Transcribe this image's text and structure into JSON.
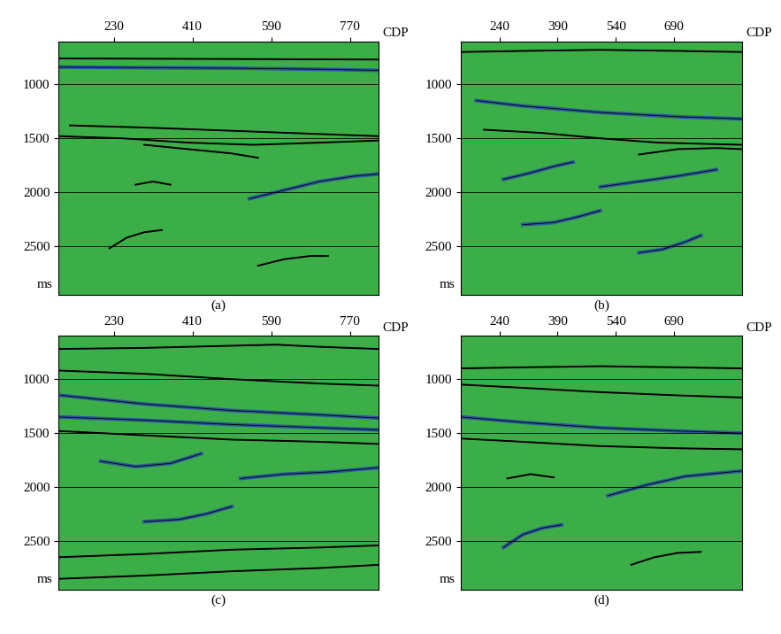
{
  "chart_data": [
    {
      "type": "image",
      "title": "(a)",
      "xlabel": "CDP",
      "ylabel": "ms",
      "xlim": [
        104,
        836
      ],
      "ylim": [
        2950,
        600
      ],
      "xticks": [
        230,
        410,
        590,
        770
      ],
      "yticks": [
        1000,
        1500,
        2000,
        2500
      ],
      "grid": true,
      "series": [
        {
          "color": "#2a5a9a",
          "x": [
            104,
            300,
            500,
            700,
            836
          ],
          "values": [
            840,
            845,
            850,
            860,
            870
          ]
        },
        {
          "color": "#000000",
          "x": [
            104,
            300,
            500,
            700,
            836
          ],
          "values": [
            760,
            762,
            765,
            768,
            770
          ]
        },
        {
          "color": "#000000",
          "x": [
            130,
            300,
            500,
            700,
            836
          ],
          "values": [
            1380,
            1400,
            1430,
            1460,
            1480
          ]
        },
        {
          "color": "#000000",
          "x": [
            104,
            250,
            400,
            550,
            700,
            836
          ],
          "values": [
            1480,
            1500,
            1540,
            1560,
            1540,
            1520
          ]
        },
        {
          "color": "#000000",
          "x": [
            300,
            400,
            500,
            560
          ],
          "values": [
            1560,
            1600,
            1640,
            1680
          ]
        },
        {
          "color": "#000000",
          "x": [
            280,
            320,
            360
          ],
          "values": [
            1930,
            1900,
            1930
          ]
        },
        {
          "color": "#2a5a9a",
          "x": [
            540,
            620,
            700,
            780,
            836
          ],
          "values": [
            2060,
            1980,
            1900,
            1850,
            1830
          ]
        },
        {
          "color": "#000000",
          "x": [
            220,
            260,
            300,
            340
          ],
          "values": [
            2520,
            2420,
            2370,
            2350
          ]
        },
        {
          "color": "#000000",
          "x": [
            560,
            620,
            680,
            720
          ],
          "values": [
            2680,
            2620,
            2590,
            2590
          ]
        }
      ]
    },
    {
      "type": "image",
      "title": "(b)",
      "xlabel": "CDP",
      "ylabel": "ms",
      "xlim": [
        140,
        866
      ],
      "ylim": [
        2950,
        600
      ],
      "xticks": [
        240,
        390,
        540,
        690
      ],
      "yticks": [
        1000,
        1500,
        2000,
        2500
      ],
      "grid": true,
      "series": [
        {
          "color": "#000000",
          "x": [
            140,
            300,
            500,
            700,
            866
          ],
          "values": [
            700,
            690,
            680,
            690,
            700
          ]
        },
        {
          "color": "#2a5a9a",
          "x": [
            180,
            300,
            500,
            700,
            866
          ],
          "values": [
            1150,
            1200,
            1260,
            1300,
            1320
          ]
        },
        {
          "color": "#000000",
          "x": [
            200,
            350,
            500,
            650,
            866
          ],
          "values": [
            1420,
            1450,
            1500,
            1540,
            1560
          ]
        },
        {
          "color": "#000000",
          "x": [
            600,
            700,
            800,
            866
          ],
          "values": [
            1650,
            1600,
            1590,
            1600
          ]
        },
        {
          "color": "#2a5a9a",
          "x": [
            250,
            320,
            380,
            430
          ],
          "values": [
            1880,
            1820,
            1760,
            1720
          ]
        },
        {
          "color": "#2a5a9a",
          "x": [
            500,
            600,
            700,
            800
          ],
          "values": [
            1950,
            1900,
            1850,
            1790
          ]
        },
        {
          "color": "#2a5a9a",
          "x": [
            300,
            380,
            440,
            500
          ],
          "values": [
            2300,
            2280,
            2230,
            2170
          ]
        },
        {
          "color": "#2a5a9a",
          "x": [
            600,
            660,
            720,
            760
          ],
          "values": [
            2560,
            2530,
            2460,
            2400
          ]
        }
      ]
    },
    {
      "type": "image",
      "title": "(c)",
      "xlabel": "CDP",
      "ylabel": "ms",
      "xlim": [
        104,
        836
      ],
      "ylim": [
        2950,
        600
      ],
      "xticks": [
        230,
        410,
        590,
        770
      ],
      "yticks": [
        1000,
        1500,
        2000,
        2500
      ],
      "grid": true,
      "series": [
        {
          "color": "#000000",
          "x": [
            104,
            300,
            500,
            600,
            700,
            836
          ],
          "values": [
            720,
            710,
            690,
            680,
            700,
            720
          ]
        },
        {
          "color": "#000000",
          "x": [
            104,
            300,
            500,
            700,
            836
          ],
          "values": [
            920,
            950,
            1000,
            1040,
            1060
          ]
        },
        {
          "color": "#2a5a9a",
          "x": [
            110,
            300,
            500,
            700,
            836
          ],
          "values": [
            1150,
            1230,
            1290,
            1330,
            1360
          ]
        },
        {
          "color": "#2a5a9a",
          "x": [
            104,
            300,
            500,
            700,
            836
          ],
          "values": [
            1350,
            1380,
            1420,
            1450,
            1470
          ]
        },
        {
          "color": "#000000",
          "x": [
            104,
            300,
            500,
            700,
            836
          ],
          "values": [
            1480,
            1520,
            1560,
            1580,
            1600
          ]
        },
        {
          "color": "#2a5a9a",
          "x": [
            200,
            280,
            360,
            430
          ],
          "values": [
            1760,
            1810,
            1780,
            1690
          ]
        },
        {
          "color": "#2a5a9a",
          "x": [
            520,
            620,
            720,
            836
          ],
          "values": [
            1920,
            1880,
            1860,
            1820
          ]
        },
        {
          "color": "#2a5a9a",
          "x": [
            300,
            380,
            440,
            500
          ],
          "values": [
            2320,
            2300,
            2250,
            2180
          ]
        },
        {
          "color": "#000000",
          "x": [
            104,
            300,
            500,
            700,
            836
          ],
          "values": [
            2650,
            2620,
            2580,
            2560,
            2540
          ]
        },
        {
          "color": "#000000",
          "x": [
            104,
            300,
            500,
            700,
            836
          ],
          "values": [
            2850,
            2820,
            2780,
            2750,
            2720
          ]
        }
      ]
    },
    {
      "type": "image",
      "title": "(d)",
      "xlabel": "CDP",
      "ylabel": "ms",
      "xlim": [
        140,
        866
      ],
      "ylim": [
        2950,
        600
      ],
      "xticks": [
        240,
        390,
        540,
        690
      ],
      "yticks": [
        1000,
        1500,
        2000,
        2500
      ],
      "grid": true,
      "series": [
        {
          "color": "#000000",
          "x": [
            140,
            300,
            500,
            700,
            866
          ],
          "values": [
            900,
            890,
            880,
            890,
            900
          ]
        },
        {
          "color": "#000000",
          "x": [
            140,
            300,
            500,
            700,
            866
          ],
          "values": [
            1050,
            1080,
            1120,
            1150,
            1170
          ]
        },
        {
          "color": "#2a5a9a",
          "x": [
            140,
            300,
            500,
            700,
            866
          ],
          "values": [
            1350,
            1400,
            1450,
            1480,
            1500
          ]
        },
        {
          "color": "#000000",
          "x": [
            140,
            300,
            500,
            700,
            866
          ],
          "values": [
            1550,
            1580,
            1620,
            1640,
            1650
          ]
        },
        {
          "color": "#000000",
          "x": [
            260,
            320,
            380
          ],
          "values": [
            1920,
            1880,
            1910
          ]
        },
        {
          "color": "#2a5a9a",
          "x": [
            520,
            620,
            720,
            866
          ],
          "values": [
            2080,
            1980,
            1900,
            1850
          ]
        },
        {
          "color": "#2a5a9a",
          "x": [
            250,
            300,
            350,
            400
          ],
          "values": [
            2560,
            2440,
            2380,
            2350
          ]
        },
        {
          "color": "#000000",
          "x": [
            580,
            640,
            700,
            760
          ],
          "values": [
            2720,
            2650,
            2610,
            2600
          ]
        }
      ]
    }
  ]
}
